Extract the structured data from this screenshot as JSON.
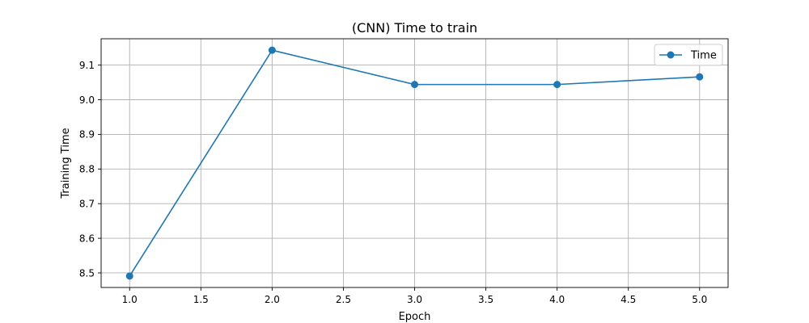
{
  "chart_data": {
    "type": "line",
    "title": "(CNN) Time to train",
    "xlabel": "Epoch",
    "ylabel": "Training Time",
    "x": [
      1.0,
      2.0,
      3.0,
      4.0,
      5.0
    ],
    "series": [
      {
        "name": "Time",
        "values": [
          8.491,
          9.143,
          9.044,
          9.044,
          9.066
        ],
        "color": "#1f77b4",
        "marker": "circle"
      }
    ],
    "xlim": [
      0.8,
      5.2
    ],
    "ylim": [
      8.458,
      9.176
    ],
    "xticks": [
      1.0,
      1.5,
      2.0,
      2.5,
      3.0,
      3.5,
      4.0,
      4.5,
      5.0
    ],
    "xtick_labels": [
      "1.0",
      "1.5",
      "2.0",
      "2.5",
      "3.0",
      "3.5",
      "4.0",
      "4.5",
      "5.0"
    ],
    "yticks": [
      8.5,
      8.6,
      8.7,
      8.8,
      8.9,
      9.0,
      9.1
    ],
    "ytick_labels": [
      "8.5",
      "8.6",
      "8.7",
      "8.8",
      "8.9",
      "9.0",
      "9.1"
    ],
    "grid": true,
    "legend": "top-right"
  }
}
